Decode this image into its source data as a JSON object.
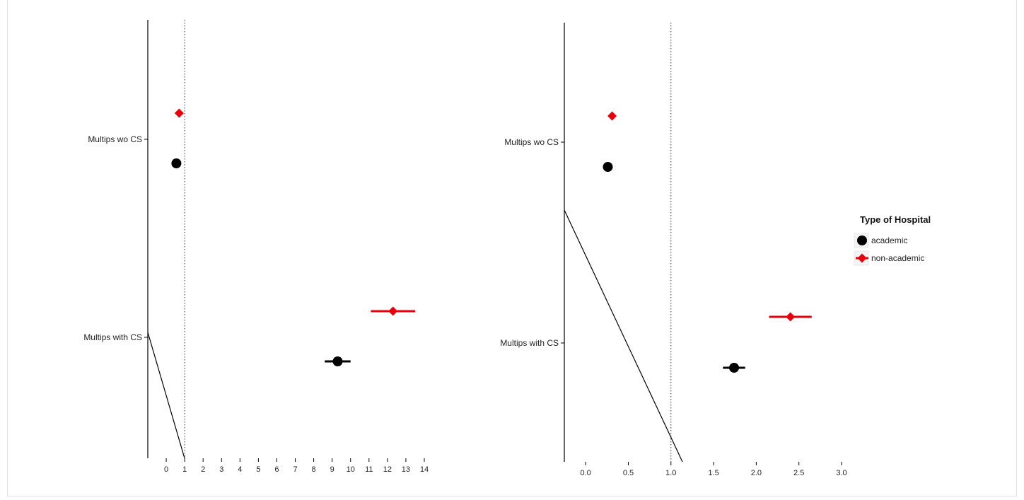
{
  "chart_data": [
    {
      "type": "scatter",
      "categories": [
        "Multips wo CS",
        "Multips with CS"
      ],
      "x_ticks": [
        "0",
        "1",
        "2",
        "3",
        "4",
        "5",
        "6",
        "7",
        "8",
        "9",
        "10",
        "11",
        "12",
        "13",
        "14"
      ],
      "xlim": [
        -1,
        14
      ],
      "reference_line_x": 1,
      "series": [
        {
          "name": "academic",
          "color": "#000000",
          "marker": "circle",
          "points": [
            {
              "category": "Multips wo CS",
              "value": 0.55,
              "low": 0.55,
              "high": 0.55
            },
            {
              "category": "Multips with CS",
              "value": 9.3,
              "low": 8.6,
              "high": 10.0
            }
          ]
        },
        {
          "name": "non-academic",
          "color": "#e8000b",
          "marker": "diamond",
          "points": [
            {
              "category": "Multips wo CS",
              "value": 0.7,
              "low": 0.7,
              "high": 0.7
            },
            {
              "category": "Multips with CS",
              "value": 12.3,
              "low": 11.1,
              "high": 13.5
            }
          ]
        }
      ]
    },
    {
      "type": "scatter",
      "categories": [
        "Multips wo CS",
        "Multips with CS"
      ],
      "x_ticks": [
        "0.0",
        "0.5",
        "1.0",
        "1.5",
        "2.0",
        "2.5",
        "3.0"
      ],
      "xlim": [
        -0.25,
        3.0
      ],
      "reference_line_x": 1.0,
      "series": [
        {
          "name": "academic",
          "color": "#000000",
          "marker": "circle",
          "points": [
            {
              "category": "Multips wo CS",
              "value": 0.26,
              "low": 0.26,
              "high": 0.26
            },
            {
              "category": "Multips with CS",
              "value": 1.74,
              "low": 1.61,
              "high": 1.87
            }
          ]
        },
        {
          "name": "non-academic",
          "color": "#e8000b",
          "marker": "diamond",
          "points": [
            {
              "category": "Multips wo CS",
              "value": 0.31,
              "low": 0.31,
              "high": 0.31
            },
            {
              "category": "Multips with CS",
              "value": 2.4,
              "low": 2.15,
              "high": 2.65
            }
          ]
        }
      ]
    }
  ],
  "legend": {
    "title": "Type of Hospital",
    "items": [
      {
        "label": "academic",
        "color": "#000000",
        "marker": "circle"
      },
      {
        "label": "non-academic",
        "color": "#e8000b",
        "marker": "diamond"
      }
    ]
  }
}
